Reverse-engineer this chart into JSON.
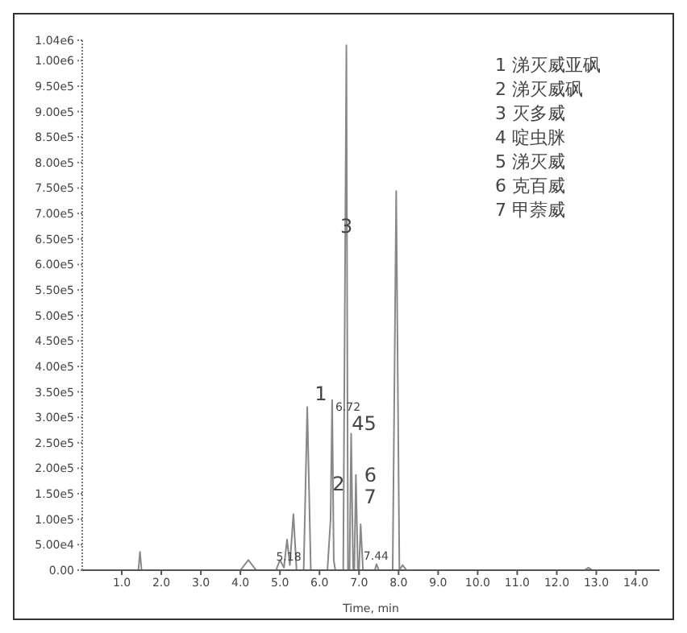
{
  "chart_data": {
    "type": "line",
    "xlabel": "Time, min",
    "x": [
      0,
      0.5,
      1.3,
      1.42,
      1.46,
      1.5,
      2,
      3,
      4.0,
      4.2,
      4.4,
      4.9,
      5.0,
      5.1,
      5.18,
      5.25,
      5.34,
      5.42,
      5.6,
      5.69,
      5.78,
      6.2,
      6.28,
      6.32,
      6.36,
      6.4,
      6.6,
      6.68,
      6.72,
      6.76,
      6.8,
      6.85,
      6.88,
      6.92,
      6.97,
      7.0,
      7.04,
      7.1,
      7.4,
      7.44,
      7.5,
      7.85,
      7.94,
      8.02,
      8.1,
      8.2,
      10,
      12.7,
      12.8,
      12.9,
      14.6
    ],
    "series": [
      {
        "color": "#888888",
        "values": [
          0,
          0,
          0,
          0,
          36000,
          0,
          0,
          0,
          0,
          20000,
          0,
          0,
          20000,
          5000,
          60000,
          10000,
          110000,
          0,
          0,
          320000,
          0,
          0,
          100000,
          334000,
          20000,
          0,
          0,
          1030000,
          0,
          0,
          268000,
          0,
          0,
          187000,
          0,
          0,
          90000,
          0,
          0,
          12000,
          0,
          0,
          744000,
          0,
          10000,
          0,
          0,
          0,
          5000,
          0,
          0
        ]
      }
    ],
    "xlim": [
      0,
      14.6
    ],
    "xticks": [
      {
        "value": 1,
        "label": "1.0"
      },
      {
        "value": 2,
        "label": "2.0"
      },
      {
        "value": 3,
        "label": "3.0"
      },
      {
        "value": 4,
        "label": "4.0"
      },
      {
        "value": 5,
        "label": "5.0"
      },
      {
        "value": 6,
        "label": "6.0"
      },
      {
        "value": 7,
        "label": "7.0"
      },
      {
        "value": 8,
        "label": "8.0"
      },
      {
        "value": 9,
        "label": "9.0"
      },
      {
        "value": 10,
        "label": "10.0"
      },
      {
        "value": 11,
        "label": "11.0"
      },
      {
        "value": 12,
        "label": "12.0"
      },
      {
        "value": 13,
        "label": "13.0"
      },
      {
        "value": 14,
        "label": "14.0"
      }
    ],
    "ylim": [
      0,
      1040000
    ],
    "yticks": [
      {
        "value": 0,
        "label": "0.00"
      },
      {
        "value": 50000,
        "label": "5.00e4"
      },
      {
        "value": 100000,
        "label": "1.00e5"
      },
      {
        "value": 150000,
        "label": "1.50e5"
      },
      {
        "value": 200000,
        "label": "2.00e5"
      },
      {
        "value": 250000,
        "label": "2.50e5"
      },
      {
        "value": 300000,
        "label": "3.00e5"
      },
      {
        "value": 350000,
        "label": "3.50e5"
      },
      {
        "value": 400000,
        "label": "4.00e5"
      },
      {
        "value": 450000,
        "label": "4.50e5"
      },
      {
        "value": 500000,
        "label": "5.00e5"
      },
      {
        "value": 550000,
        "label": "5.50e5"
      },
      {
        "value": 600000,
        "label": "6.00e5"
      },
      {
        "value": 650000,
        "label": "6.50e5"
      },
      {
        "value": 700000,
        "label": "7.00e5"
      },
      {
        "value": 750000,
        "label": "7.50e5"
      },
      {
        "value": 800000,
        "label": "8.00e5"
      },
      {
        "value": 850000,
        "label": "8.50e5"
      },
      {
        "value": 900000,
        "label": "9.00e5"
      },
      {
        "value": 950000,
        "label": "9.50e5"
      },
      {
        "value": 1000000,
        "label": "1.00e6"
      },
      {
        "value": 1040000,
        "label": "1.04e6"
      }
    ],
    "marker": "none",
    "grid": false,
    "legend": false,
    "annotations": [
      "1 涕灭威亚砜",
      "2 涕灭威砜",
      "3 灭多威",
      "4 啶虫脒",
      "5 涕灭威",
      "6 克百威",
      "7 甲萘威",
      {
        "text": "3",
        "x": 6.68,
        "y": 675000
      },
      {
        "text": "1",
        "x": 6.32,
        "y": 334000
      },
      {
        "text": "6.72",
        "x": 6.72,
        "y": 320000
      },
      {
        "text": "45",
        "x": 6.8,
        "y": 268000
      },
      {
        "text": "2",
        "x": 6.48,
        "y": 169000
      },
      {
        "text": "6",
        "x": 6.92,
        "y": 187000
      },
      {
        "text": "7",
        "x": 7.04,
        "y": 90000
      },
      {
        "text": "5.18",
        "x": 5.22,
        "y": 12000
      },
      {
        "text": "7.44",
        "x": 7.43,
        "y": 27000
      }
    ]
  }
}
